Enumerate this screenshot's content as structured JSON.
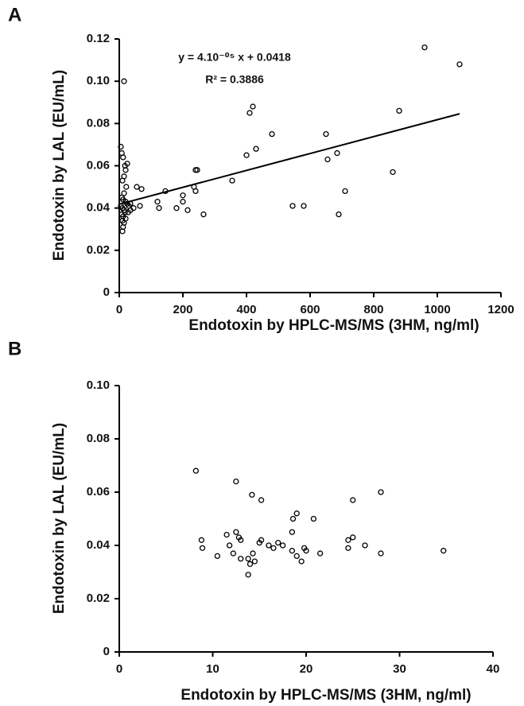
{
  "chart_data": [
    {
      "type": "scatter",
      "panel_label": "A",
      "x_label": "Endotoxin by HPLC-MS/MS (3HM, ng/ml)",
      "y_label": "Endotoxin by LAL (EU/mL)",
      "marker_color": "#000000",
      "x": [
        960,
        1070,
        15,
        420,
        410,
        880,
        650,
        480,
        400,
        430,
        685,
        655,
        860,
        240,
        245,
        355,
        235,
        240,
        200,
        145,
        120,
        125,
        200,
        180,
        215,
        265,
        545,
        580,
        690,
        710,
        55,
        70,
        45,
        65,
        35,
        5,
        8,
        12,
        18,
        25,
        20,
        15,
        10,
        22,
        15,
        8,
        12,
        20,
        25,
        5,
        10,
        15,
        18,
        8,
        12,
        20,
        10,
        15,
        12,
        10,
        30,
        28,
        35
      ],
      "y": [
        0.116,
        0.108,
        0.1,
        0.088,
        0.085,
        0.086,
        0.075,
        0.075,
        0.065,
        0.068,
        0.066,
        0.063,
        0.057,
        0.058,
        0.058,
        0.053,
        0.05,
        0.048,
        0.046,
        0.048,
        0.043,
        0.04,
        0.043,
        0.04,
        0.039,
        0.037,
        0.041,
        0.041,
        0.037,
        0.048,
        0.05,
        0.049,
        0.04,
        0.041,
        0.042,
        0.069,
        0.066,
        0.064,
        0.06,
        0.061,
        0.058,
        0.055,
        0.053,
        0.05,
        0.047,
        0.045,
        0.044,
        0.043,
        0.042,
        0.041,
        0.04,
        0.039,
        0.038,
        0.037,
        0.036,
        0.035,
        0.034,
        0.033,
        0.031,
        0.029,
        0.041,
        0.038,
        0.039
      ],
      "xlim": [
        0,
        1200
      ],
      "xticks": [
        0,
        200,
        400,
        600,
        800,
        1000,
        1200
      ],
      "ylim": [
        0,
        0.12
      ],
      "yticks": [
        0,
        0.02,
        0.04,
        0.06,
        0.08,
        {
          "value": 0.1,
          "label": "0.10"
        },
        0.12
      ],
      "trendline": {
        "slope": 4e-05,
        "intercept": 0.0418,
        "x_range": [
          0,
          1070
        ]
      },
      "annotations": [
        "y = 4.10⁻⁰⁵ x + 0.0418",
        "R² = 0.3886"
      ]
    },
    {
      "type": "scatter",
      "panel_label": "B",
      "x_label": "Endotoxin by HPLC-MS/MS (3HM, ng/ml)",
      "y_label": "Endotoxin  by LAL (EU/mL)",
      "marker_color": "#000000",
      "x": [
        8.2,
        12.5,
        14.2,
        15.2,
        19,
        18.6,
        20.8,
        25,
        28,
        8.8,
        8.9,
        10.5,
        11.5,
        11.8,
        12.2,
        12.5,
        12.8,
        13,
        13,
        13.8,
        14,
        13.8,
        14.3,
        14.5,
        15,
        15.2,
        16,
        16.5,
        17,
        17.5,
        18.5,
        18.5,
        19,
        19.5,
        19.8,
        20,
        21.5,
        24.5,
        24.5,
        25,
        26.3,
        28,
        34.7
      ],
      "y": [
        0.068,
        0.064,
        0.059,
        0.057,
        0.052,
        0.05,
        0.05,
        0.057,
        0.06,
        0.042,
        0.039,
        0.036,
        0.044,
        0.04,
        0.037,
        0.045,
        0.043,
        0.042,
        0.035,
        0.035,
        0.033,
        0.029,
        0.037,
        0.034,
        0.041,
        0.042,
        0.04,
        0.039,
        0.041,
        0.04,
        0.045,
        0.038,
        0.036,
        0.034,
        0.039,
        0.038,
        0.037,
        0.042,
        0.039,
        0.043,
        0.04,
        0.037,
        0.038
      ],
      "xlim": [
        0,
        40
      ],
      "xticks": [
        0,
        10,
        20,
        30,
        40
      ],
      "ylim": [
        0,
        0.1
      ],
      "yticks": [
        0,
        0.02,
        0.04,
        0.06,
        0.08,
        {
          "value": 0.1,
          "label": "0.10"
        }
      ]
    }
  ]
}
